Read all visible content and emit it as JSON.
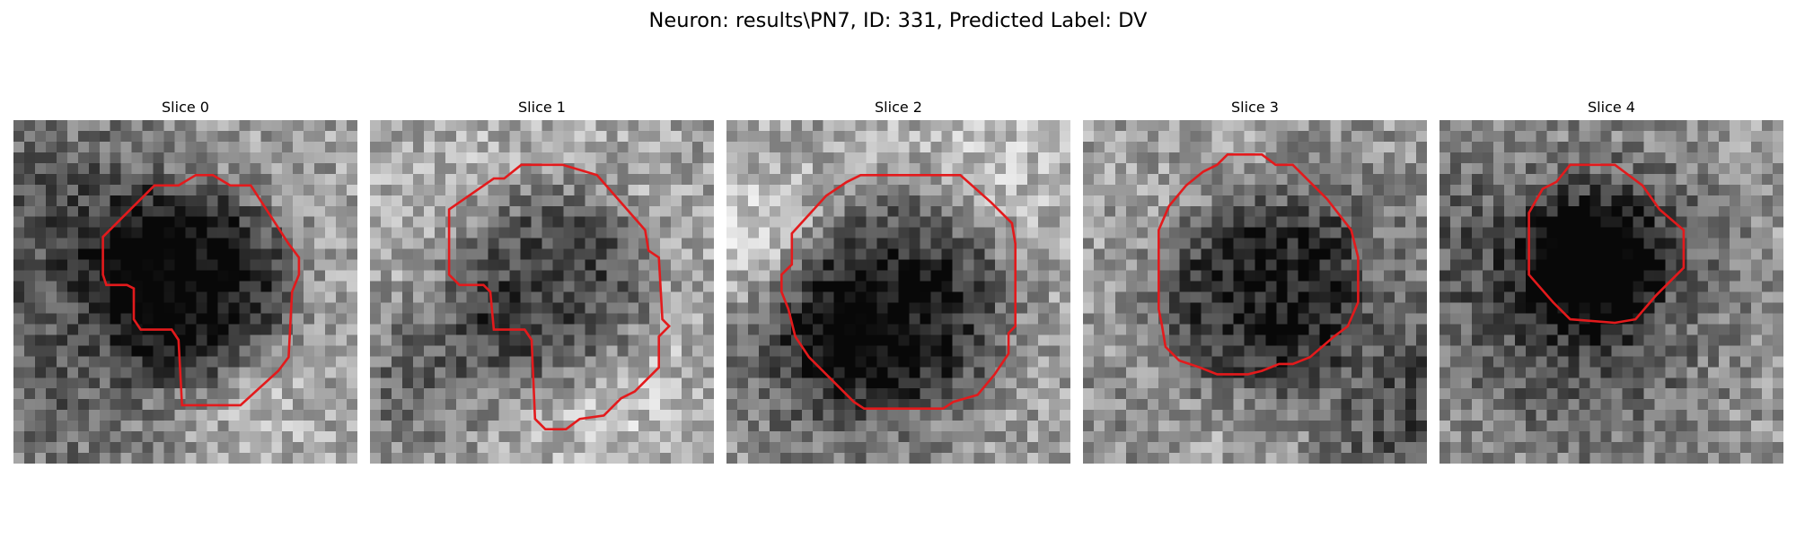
{
  "figure": {
    "title": "Neuron: results\\PN7, ID: 331, Predicted Label: DV",
    "contour_color": "#e31a1c",
    "grid_size": 32
  },
  "slices": [
    {
      "title": "Slice 0",
      "seed": 11,
      "center": [
        0.52,
        0.47
      ],
      "radius": 0.28,
      "darkness": 0.55,
      "contour": [
        [
          0.26,
          0.34
        ],
        [
          0.41,
          0.19
        ],
        [
          0.48,
          0.19
        ],
        [
          0.53,
          0.16
        ],
        [
          0.58,
          0.16
        ],
        [
          0.63,
          0.19
        ],
        [
          0.69,
          0.19
        ],
        [
          0.8,
          0.36
        ],
        [
          0.83,
          0.4
        ],
        [
          0.83,
          0.45
        ],
        [
          0.81,
          0.5
        ],
        [
          0.8,
          0.69
        ],
        [
          0.77,
          0.73
        ],
        [
          0.66,
          0.83
        ],
        [
          0.49,
          0.83
        ],
        [
          0.48,
          0.64
        ],
        [
          0.46,
          0.61
        ],
        [
          0.37,
          0.61
        ],
        [
          0.35,
          0.58
        ],
        [
          0.35,
          0.49
        ],
        [
          0.33,
          0.48
        ],
        [
          0.27,
          0.48
        ],
        [
          0.26,
          0.45
        ]
      ]
    },
    {
      "title": "Slice 1",
      "seed": 23,
      "center": [
        0.52,
        0.48
      ],
      "radius": 0.3,
      "darkness": 0.5,
      "contour": [
        [
          0.23,
          0.26
        ],
        [
          0.36,
          0.17
        ],
        [
          0.39,
          0.17
        ],
        [
          0.44,
          0.13
        ],
        [
          0.56,
          0.13
        ],
        [
          0.66,
          0.16
        ],
        [
          0.8,
          0.32
        ],
        [
          0.81,
          0.38
        ],
        [
          0.84,
          0.4
        ],
        [
          0.85,
          0.58
        ],
        [
          0.87,
          0.6
        ],
        [
          0.84,
          0.63
        ],
        [
          0.84,
          0.72
        ],
        [
          0.77,
          0.79
        ],
        [
          0.73,
          0.81
        ],
        [
          0.68,
          0.86
        ],
        [
          0.61,
          0.87
        ],
        [
          0.57,
          0.9
        ],
        [
          0.51,
          0.9
        ],
        [
          0.48,
          0.87
        ],
        [
          0.47,
          0.64
        ],
        [
          0.45,
          0.61
        ],
        [
          0.36,
          0.61
        ],
        [
          0.35,
          0.5
        ],
        [
          0.33,
          0.48
        ],
        [
          0.26,
          0.48
        ],
        [
          0.23,
          0.45
        ]
      ]
    },
    {
      "title": "Slice 2",
      "seed": 37,
      "center": [
        0.52,
        0.52
      ],
      "radius": 0.31,
      "darkness": 0.42,
      "contour": [
        [
          0.19,
          0.33
        ],
        [
          0.29,
          0.22
        ],
        [
          0.35,
          0.18
        ],
        [
          0.39,
          0.16
        ],
        [
          0.68,
          0.16
        ],
        [
          0.77,
          0.24
        ],
        [
          0.83,
          0.3
        ],
        [
          0.84,
          0.36
        ],
        [
          0.84,
          0.6
        ],
        [
          0.82,
          0.62
        ],
        [
          0.82,
          0.68
        ],
        [
          0.78,
          0.74
        ],
        [
          0.73,
          0.8
        ],
        [
          0.66,
          0.82
        ],
        [
          0.63,
          0.84
        ],
        [
          0.4,
          0.84
        ],
        [
          0.37,
          0.82
        ],
        [
          0.31,
          0.76
        ],
        [
          0.24,
          0.69
        ],
        [
          0.2,
          0.63
        ],
        [
          0.18,
          0.55
        ],
        [
          0.16,
          0.5
        ],
        [
          0.16,
          0.45
        ],
        [
          0.19,
          0.42
        ]
      ]
    },
    {
      "title": "Slice 3",
      "seed": 41,
      "center": [
        0.5,
        0.52
      ],
      "radius": 0.29,
      "darkness": 0.4,
      "contour": [
        [
          0.25,
          0.25
        ],
        [
          0.3,
          0.19
        ],
        [
          0.35,
          0.15
        ],
        [
          0.39,
          0.13
        ],
        [
          0.42,
          0.1
        ],
        [
          0.52,
          0.1
        ],
        [
          0.56,
          0.13
        ],
        [
          0.61,
          0.13
        ],
        [
          0.64,
          0.16
        ],
        [
          0.71,
          0.23
        ],
        [
          0.78,
          0.32
        ],
        [
          0.8,
          0.4
        ],
        [
          0.8,
          0.53
        ],
        [
          0.77,
          0.6
        ],
        [
          0.73,
          0.63
        ],
        [
          0.66,
          0.69
        ],
        [
          0.61,
          0.71
        ],
        [
          0.57,
          0.71
        ],
        [
          0.52,
          0.73
        ],
        [
          0.48,
          0.74
        ],
        [
          0.39,
          0.74
        ],
        [
          0.34,
          0.72
        ],
        [
          0.28,
          0.7
        ],
        [
          0.24,
          0.66
        ],
        [
          0.23,
          0.6
        ],
        [
          0.22,
          0.55
        ],
        [
          0.22,
          0.32
        ]
      ]
    },
    {
      "title": "Slice 4",
      "seed": 53,
      "center": [
        0.45,
        0.43
      ],
      "radius": 0.2,
      "darkness": 0.35,
      "contour": [
        [
          0.26,
          0.27
        ],
        [
          0.3,
          0.2
        ],
        [
          0.34,
          0.18
        ],
        [
          0.38,
          0.13
        ],
        [
          0.51,
          0.13
        ],
        [
          0.59,
          0.19
        ],
        [
          0.64,
          0.26
        ],
        [
          0.71,
          0.32
        ],
        [
          0.71,
          0.43
        ],
        [
          0.63,
          0.51
        ],
        [
          0.57,
          0.58
        ],
        [
          0.51,
          0.59
        ],
        [
          0.38,
          0.58
        ],
        [
          0.33,
          0.53
        ],
        [
          0.26,
          0.45
        ]
      ]
    }
  ]
}
